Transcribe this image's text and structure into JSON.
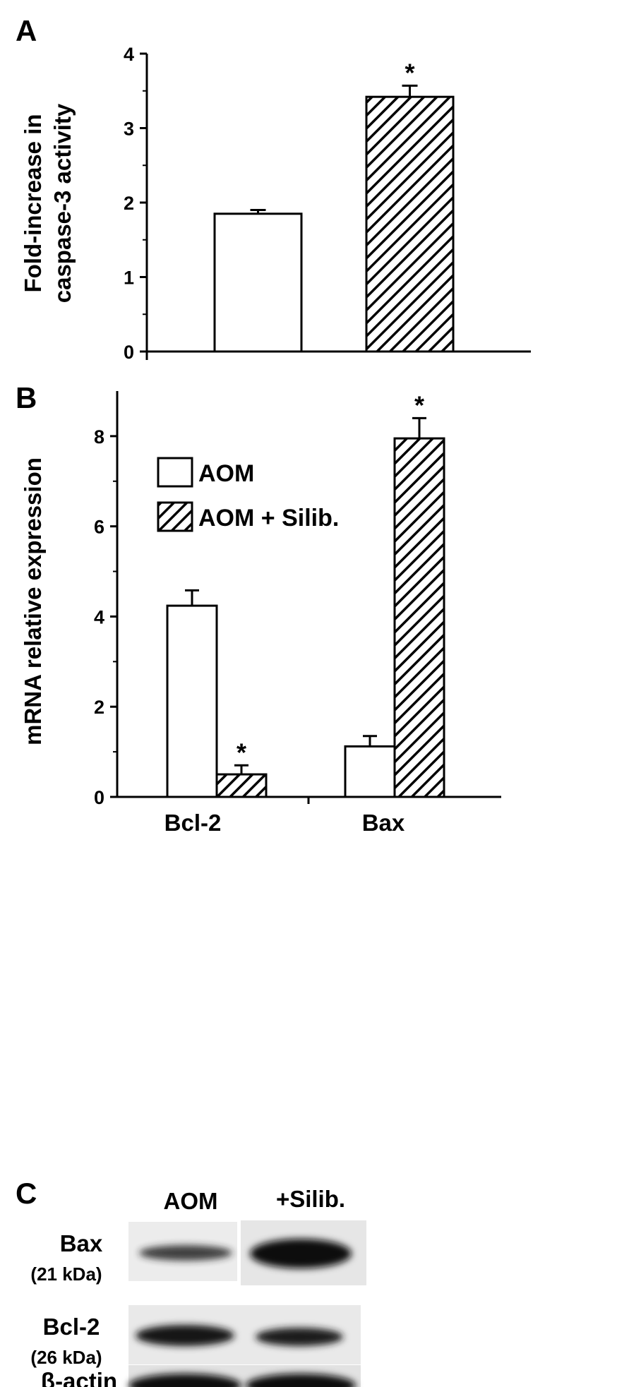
{
  "panels": {
    "a": "A",
    "b": "B",
    "c": "C"
  },
  "colors": {
    "axis": "#000000",
    "bar_fill": "#ffffff",
    "hatch": "#000000",
    "blot_bg": "#e9e9e9",
    "band": "#1c1c1c"
  },
  "chart_data": [
    {
      "type": "bar",
      "panel": "A",
      "ylabel_lines": [
        "Fold-increase in",
        "caspase-3 activity"
      ],
      "ylim": [
        0,
        4
      ],
      "yticks": [
        0,
        1,
        2,
        3,
        4
      ],
      "ytick_labels": [
        "0",
        "1",
        "2",
        "3",
        "4"
      ],
      "categories": [
        "",
        ""
      ],
      "series": [
        {
          "fill": "open",
          "values": [
            1.85,
            null
          ],
          "errors": [
            0.05,
            null
          ]
        },
        {
          "fill": "hatched",
          "values": [
            null,
            3.42
          ],
          "errors": [
            null,
            0.15
          ]
        }
      ],
      "significance": [
        null,
        "*"
      ]
    },
    {
      "type": "bar",
      "panel": "B",
      "ylabel": "mRNA relative expression",
      "ylim": [
        0,
        9
      ],
      "yticks": [
        0,
        2,
        4,
        6,
        8
      ],
      "ytick_labels": [
        "0",
        "2",
        "4",
        "6",
        "8"
      ],
      "categories": [
        "Bcl-2",
        "Bax"
      ],
      "series": [
        {
          "name": "AOM",
          "fill": "open",
          "values": [
            4.24,
            1.12
          ],
          "errors": [
            0.34,
            0.23
          ],
          "significance": [
            null,
            null
          ]
        },
        {
          "name": "AOM + Silib.",
          "fill": "hatched",
          "values": [
            0.5,
            7.95
          ],
          "errors": [
            0.2,
            0.45
          ],
          "significance": [
            "*",
            "*"
          ]
        }
      ],
      "legend": "top-left"
    }
  ],
  "blot": {
    "columns": [
      "AOM",
      "+Silib."
    ],
    "rows": [
      {
        "label": "Bax",
        "sub": "(21 kDa)",
        "intensity": [
          0.45,
          1.0
        ]
      },
      {
        "label": "Bcl-2",
        "sub": "(26 kDa)",
        "intensity": [
          0.8,
          0.7
        ]
      },
      {
        "label": "β-actin",
        "sub": "",
        "intensity": [
          0.95,
          0.95
        ]
      }
    ]
  }
}
